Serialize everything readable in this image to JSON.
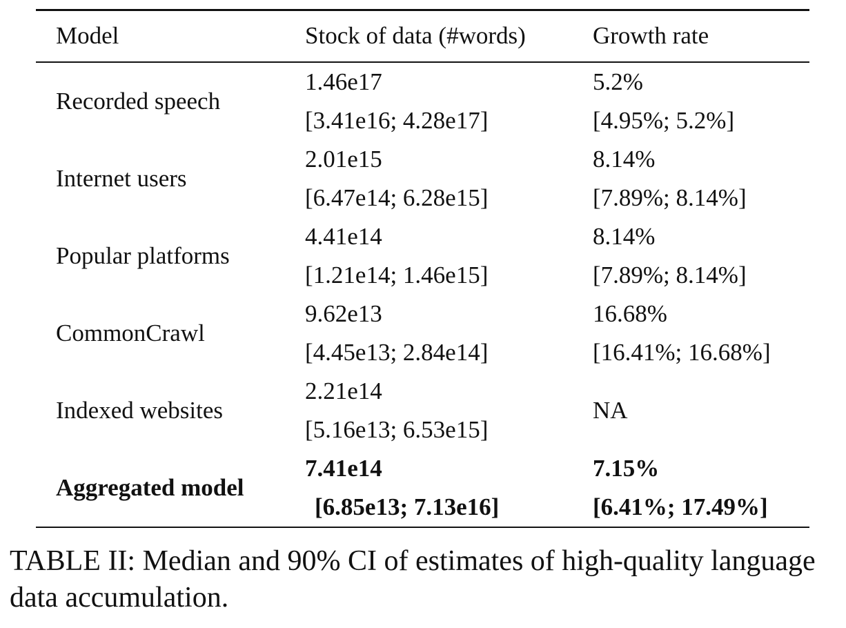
{
  "table": {
    "headers": {
      "model": "Model",
      "stock": "Stock of data (#words)",
      "growth": "Growth rate"
    },
    "rows": [
      {
        "model": "Recorded speech",
        "stock_median": "1.46e17",
        "stock_ci": "[3.41e16; 4.28e17]",
        "growth_median": "5.2%",
        "growth_ci": "[4.95%; 5.2%]"
      },
      {
        "model": "Internet users",
        "stock_median": "2.01e15",
        "stock_ci": "[6.47e14; 6.28e15]",
        "growth_median": "8.14%",
        "growth_ci": "[7.89%; 8.14%]"
      },
      {
        "model": "Popular platforms",
        "stock_median": "4.41e14",
        "stock_ci": "[1.21e14; 1.46e15]",
        "growth_median": "8.14%",
        "growth_ci": "[7.89%; 8.14%]"
      },
      {
        "model": "CommonCrawl",
        "stock_median": "9.62e13",
        "stock_ci": "[4.45e13; 2.84e14]",
        "growth_median": "16.68%",
        "growth_ci": "[16.41%; 16.68%]"
      },
      {
        "model": "Indexed websites",
        "stock_median": "2.21e14",
        "stock_ci": "[5.16e13; 6.53e15]",
        "growth_single": "NA"
      }
    ],
    "aggregate": {
      "model": "Aggregated model",
      "stock_median": "7.41e14",
      "stock_ci": "[6.85e13; 7.13e16]",
      "growth_median": "7.15%",
      "growth_ci": "[6.41%; 17.49%]"
    }
  },
  "caption": "TABLE II: Median and 90% CI of estimates of high-quality language data accumulation."
}
